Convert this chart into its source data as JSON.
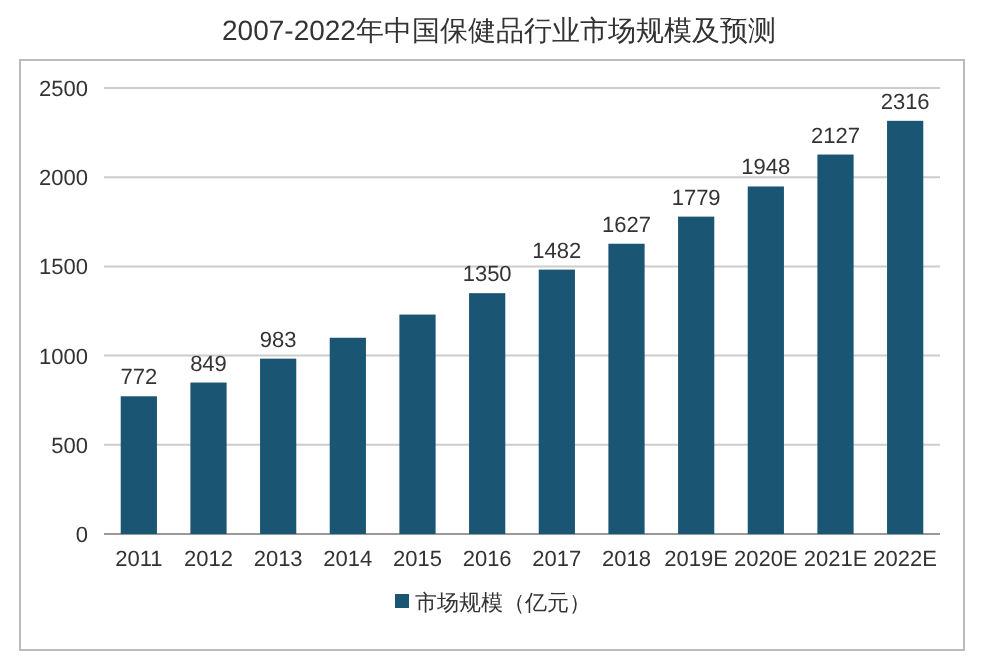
{
  "chart_data": {
    "type": "bar",
    "title": "2007-2022年中国保健品行业市场规模及预测",
    "categories": [
      "2011",
      "2012",
      "2013",
      "2014",
      "2015",
      "2016",
      "2017",
      "2018",
      "2019E",
      "2020E",
      "2021E",
      "2022E"
    ],
    "series": [
      {
        "name": "市场规模（亿元）",
        "color": "#1a5573",
        "values": [
          772,
          849,
          983,
          1100,
          1230,
          1350,
          1482,
          1627,
          1779,
          1948,
          2127,
          2316
        ],
        "value_labels": [
          "772",
          "849",
          "983",
          null,
          null,
          "1350",
          "1482",
          "1627",
          "1779",
          "1948",
          "2127",
          "2316"
        ]
      }
    ],
    "ylim": [
      0,
      2500
    ],
    "yticks": [
      0,
      500,
      1000,
      1500,
      2000,
      2500
    ],
    "grid": "y",
    "legend": "bottom"
  }
}
